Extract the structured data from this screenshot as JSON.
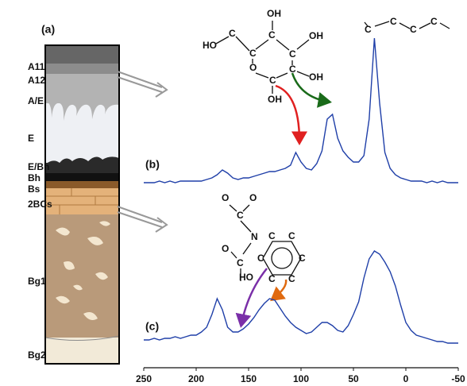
{
  "figure_label": "(a)",
  "soil_profile": {
    "horizons": [
      "A11",
      "A12",
      "A/E",
      "E",
      "E/Bh",
      "Bh",
      "Bs",
      "2BCs",
      "Bg1",
      "Bg2"
    ]
  },
  "chart_data": [
    {
      "type": "line",
      "label": "(b)",
      "x": [
        250,
        245,
        240,
        235,
        230,
        225,
        220,
        215,
        210,
        205,
        200,
        195,
        190,
        185,
        180,
        175,
        170,
        165,
        160,
        155,
        150,
        145,
        140,
        135,
        130,
        125,
        120,
        115,
        110,
        105,
        100,
        95,
        90,
        85,
        80,
        75,
        70,
        65,
        60,
        55,
        50,
        45,
        40,
        35,
        30,
        25,
        20,
        15,
        10,
        5,
        0,
        -5,
        -10,
        -15,
        -20,
        -25,
        -30,
        -35,
        -40,
        -45,
        -50
      ],
      "xlim": [
        250,
        -50
      ],
      "ylim": [
        0,
        100
      ],
      "series": [
        {
          "color": "#1f3fa8",
          "values": [
            5,
            5,
            5,
            6,
            5,
            6,
            5,
            6,
            6,
            6,
            6,
            6,
            7,
            8,
            10,
            13,
            11,
            8,
            7,
            8,
            8,
            9,
            10,
            11,
            12,
            12,
            13,
            14,
            16,
            24,
            18,
            14,
            13,
            17,
            25,
            45,
            48,
            33,
            25,
            21,
            18,
            18,
            22,
            45,
            96,
            55,
            24,
            14,
            10,
            8,
            7,
            6,
            6,
            6,
            5,
            6,
            5,
            6,
            5,
            5,
            5
          ]
        }
      ],
      "annotations": [
        "HO",
        "C",
        "C",
        "C",
        "OH",
        "OH",
        "C",
        "C",
        "OH",
        "O",
        "C",
        "OH",
        "C",
        "C",
        "C",
        "C"
      ]
    },
    {
      "type": "line",
      "label": "(c)",
      "x": [
        250,
        245,
        240,
        235,
        230,
        225,
        220,
        215,
        210,
        205,
        200,
        195,
        190,
        185,
        180,
        175,
        170,
        165,
        160,
        155,
        150,
        145,
        140,
        135,
        130,
        125,
        120,
        115,
        110,
        105,
        100,
        95,
        90,
        85,
        80,
        75,
        70,
        65,
        60,
        55,
        50,
        45,
        40,
        35,
        30,
        25,
        20,
        15,
        10,
        5,
        0,
        -5,
        -10,
        -15,
        -20,
        -25,
        -30,
        -35,
        -40,
        -45,
        -50
      ],
      "xlim": [
        250,
        -50
      ],
      "ylim": [
        0,
        100
      ],
      "xticks": [
        250,
        200,
        150,
        100,
        50,
        0,
        -50
      ],
      "series": [
        {
          "color": "#1f3fa8",
          "values": [
            11,
            11,
            12,
            11,
            12,
            12,
            13,
            12,
            13,
            14,
            14,
            16,
            19,
            27,
            37,
            30,
            19,
            16,
            16,
            18,
            21,
            25,
            30,
            34,
            37,
            36,
            31,
            26,
            22,
            19,
            17,
            15,
            16,
            19,
            22,
            22,
            20,
            17,
            16,
            20,
            27,
            35,
            50,
            62,
            67,
            65,
            60,
            54,
            45,
            33,
            22,
            17,
            14,
            13,
            12,
            11,
            10,
            10,
            9,
            9,
            9
          ]
        }
      ],
      "annotations": [
        "O",
        "O",
        "C",
        "N",
        "O",
        "C",
        "C",
        "C",
        "C",
        "C",
        "C",
        "C",
        "HO"
      ]
    }
  ]
}
